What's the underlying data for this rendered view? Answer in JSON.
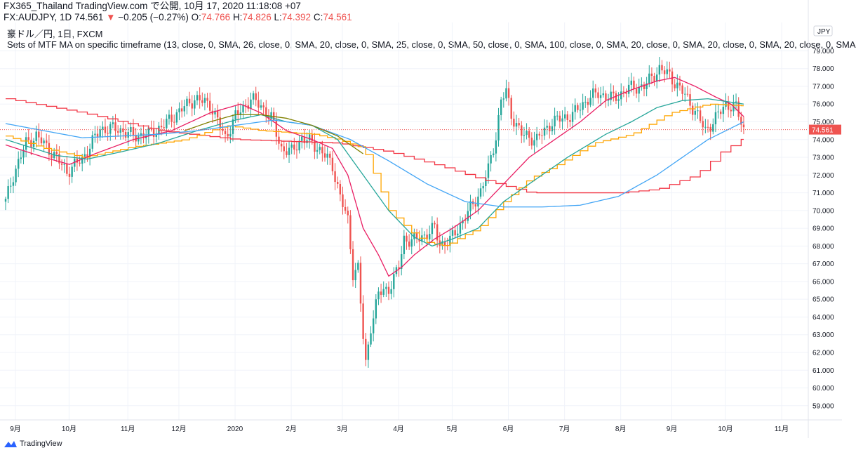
{
  "header": {
    "publish_line": "FX365_Thailand TradingView.com で公開, 10月 17, 2020 11:18:08 +07",
    "symbol": "FX:AUDJPY, 1D",
    "last": "74.561",
    "change": "−0.205 (−0.27%)",
    "o_label": "O:",
    "o": "74.766",
    "h_label": "H:",
    "h": "74.826",
    "l_label": "L:",
    "l": "74.392",
    "c_label": "C:",
    "c": "74.561"
  },
  "legend": {
    "title": "豪ドル／円, 1日, FXCM",
    "indicator": "Sets of MTF MA on specific timeframe (13, close, 0, SMA, 26, close, 0, SMA, 20, close, 0, SMA, 25, close, 0, SMA, 50, close, 0, SMA, 100, close, 0, SMA, 20, close, 0, SMA, 20, close, 0, SMA, 20, close, 0, SMA"
  },
  "footer": {
    "brand": "TradingView"
  },
  "colors": {
    "up": "#26a69a",
    "down": "#ef5350",
    "ma_red": "#f23645",
    "ma_orange": "#ffa500",
    "ma_pink": "#e91e63",
    "ma_teal": "#26a69a",
    "ma_blue": "#42a5f5",
    "ma_olive": "#808000",
    "price_tag": "#ef5350",
    "grid": "#f0f3fa"
  },
  "chart_data": {
    "type": "candlestick",
    "currency": "JPY",
    "last_price_label": "74.561",
    "ylim": [
      58.2,
      80.6
    ],
    "y_ticks": [
      59,
      60,
      61,
      62,
      63,
      64,
      65,
      66,
      67,
      68,
      69,
      70,
      71,
      72,
      73,
      74,
      75,
      76,
      77,
      78,
      79
    ],
    "x_labels": [
      "9月",
      "10月",
      "11月",
      "12月",
      "2020",
      "2月",
      "3月",
      "4月",
      "5月",
      "6月",
      "7月",
      "8月",
      "9月",
      "10月",
      "11月"
    ],
    "x_tick_idx": [
      0,
      21,
      44,
      64,
      86,
      108,
      128,
      150,
      171,
      193,
      215,
      237,
      257,
      278,
      300
    ],
    "price_anchors": [
      [
        0,
        70.5
      ],
      [
        3,
        72.0
      ],
      [
        8,
        73.8
      ],
      [
        12,
        74.2
      ],
      [
        18,
        73.3
      ],
      [
        24,
        72.2
      ],
      [
        30,
        72.9
      ],
      [
        37,
        74.6
      ],
      [
        44,
        74.6
      ],
      [
        50,
        74.2
      ],
      [
        56,
        74.3
      ],
      [
        62,
        74.8
      ],
      [
        68,
        75.6
      ],
      [
        74,
        76.3
      ],
      [
        80,
        76.0
      ],
      [
        86,
        74.1
      ],
      [
        90,
        75.3
      ],
      [
        96,
        76.3
      ],
      [
        100,
        75.9
      ],
      [
        104,
        75.2
      ],
      [
        108,
        73.5
      ],
      [
        112,
        73.3
      ],
      [
        116,
        74.1
      ],
      [
        120,
        73.8
      ],
      [
        124,
        73.3
      ],
      [
        128,
        72.5
      ],
      [
        131,
        70.8
      ],
      [
        134,
        69.4
      ],
      [
        136,
        66.5
      ],
      [
        138,
        66.8
      ],
      [
        140,
        62.8
      ],
      [
        141,
        61.3
      ],
      [
        143,
        63.5
      ],
      [
        146,
        65.3
      ],
      [
        150,
        65.6
      ],
      [
        154,
        66.8
      ],
      [
        156,
        68.4
      ],
      [
        160,
        68.3
      ],
      [
        164,
        68.6
      ],
      [
        168,
        69.0
      ],
      [
        170,
        68.1
      ],
      [
        174,
        68.3
      ],
      [
        178,
        69.2
      ],
      [
        182,
        70.1
      ],
      [
        186,
        71.1
      ],
      [
        189,
        72.3
      ],
      [
        192,
        74.2
      ],
      [
        194,
        76.2
      ],
      [
        196,
        76.7
      ],
      [
        198,
        75.4
      ],
      [
        202,
        74.3
      ],
      [
        208,
        74.0
      ],
      [
        214,
        75.0
      ],
      [
        222,
        75.4
      ],
      [
        228,
        76.3
      ],
      [
        232,
        76.6
      ],
      [
        238,
        76.3
      ],
      [
        244,
        76.9
      ],
      [
        250,
        77.0
      ],
      [
        256,
        78.0
      ],
      [
        260,
        77.6
      ],
      [
        266,
        76.5
      ],
      [
        270,
        75.6
      ],
      [
        274,
        74.5
      ],
      [
        278,
        75.2
      ],
      [
        282,
        76.0
      ],
      [
        286,
        75.8
      ],
      [
        289,
        74.56
      ]
    ],
    "series": [
      {
        "color_key": "ma_red",
        "step": 4,
        "values": [
          [
            0,
            76.3
          ],
          [
            30,
            75.5
          ],
          [
            60,
            74.5
          ],
          [
            90,
            74.0
          ],
          [
            130,
            73.8
          ],
          [
            150,
            73.3
          ],
          [
            170,
            72.5
          ],
          [
            185,
            71.8
          ],
          [
            205,
            71.0
          ],
          [
            240,
            71.0
          ],
          [
            255,
            71.2
          ],
          [
            270,
            72.0
          ],
          [
            280,
            73.3
          ],
          [
            289,
            74.1
          ]
        ]
      },
      {
        "color_key": "ma_orange",
        "step": 3,
        "values": [
          [
            0,
            74.2
          ],
          [
            15,
            73.5
          ],
          [
            30,
            73.0
          ],
          [
            50,
            73.6
          ],
          [
            70,
            74.0
          ],
          [
            86,
            74.8
          ],
          [
            100,
            74.5
          ],
          [
            120,
            74.3
          ],
          [
            130,
            74.0
          ],
          [
            140,
            73.5
          ],
          [
            150,
            70.0
          ],
          [
            160,
            68.6
          ],
          [
            165,
            68.2
          ],
          [
            172,
            68.0
          ],
          [
            178,
            68.5
          ],
          [
            185,
            69.0
          ],
          [
            195,
            70.5
          ],
          [
            205,
            71.8
          ],
          [
            215,
            72.5
          ],
          [
            230,
            73.8
          ],
          [
            245,
            74.3
          ],
          [
            260,
            75.5
          ],
          [
            275,
            76.0
          ],
          [
            289,
            75.9
          ]
        ]
      },
      {
        "color_key": "ma_pink",
        "step": 1,
        "values": [
          [
            0,
            73.7
          ],
          [
            15,
            73.0
          ],
          [
            25,
            72.6
          ],
          [
            35,
            73.2
          ],
          [
            50,
            74.0
          ],
          [
            65,
            74.5
          ],
          [
            80,
            75.5
          ],
          [
            92,
            76.0
          ],
          [
            100,
            75.5
          ],
          [
            110,
            74.5
          ],
          [
            120,
            74.0
          ],
          [
            128,
            73.5
          ],
          [
            134,
            72.0
          ],
          [
            140,
            69.0
          ],
          [
            146,
            67.5
          ],
          [
            150,
            66.3
          ],
          [
            155,
            66.8
          ],
          [
            160,
            67.5
          ],
          [
            168,
            68.4
          ],
          [
            175,
            69.0
          ],
          [
            185,
            70.0
          ],
          [
            195,
            71.5
          ],
          [
            205,
            73.0
          ],
          [
            215,
            74.0
          ],
          [
            225,
            75.0
          ],
          [
            235,
            76.2
          ],
          [
            245,
            76.8
          ],
          [
            255,
            77.3
          ],
          [
            262,
            77.5
          ],
          [
            270,
            77.0
          ],
          [
            278,
            76.4
          ],
          [
            284,
            76.0
          ],
          [
            289,
            75.3
          ]
        ]
      },
      {
        "color_key": "ma_teal",
        "step": 1,
        "values": [
          [
            0,
            74.0
          ],
          [
            20,
            73.1
          ],
          [
            32,
            72.9
          ],
          [
            45,
            73.3
          ],
          [
            60,
            73.8
          ],
          [
            75,
            74.5
          ],
          [
            90,
            75.1
          ],
          [
            100,
            75.4
          ],
          [
            110,
            75.0
          ],
          [
            120,
            74.8
          ],
          [
            130,
            74.0
          ],
          [
            140,
            72.0
          ],
          [
            150,
            70.0
          ],
          [
            160,
            68.5
          ],
          [
            167,
            68.0
          ],
          [
            175,
            68.4
          ],
          [
            185,
            69.0
          ],
          [
            195,
            70.5
          ],
          [
            210,
            72.0
          ],
          [
            220,
            73.0
          ],
          [
            235,
            74.3
          ],
          [
            245,
            75.0
          ],
          [
            255,
            75.8
          ],
          [
            265,
            76.2
          ],
          [
            275,
            76.3
          ],
          [
            289,
            76.0
          ]
        ]
      },
      {
        "color_key": "ma_blue",
        "step": 1,
        "values": [
          [
            0,
            74.9
          ],
          [
            15,
            74.5
          ],
          [
            30,
            74.1
          ],
          [
            45,
            74.2
          ],
          [
            60,
            74.3
          ],
          [
            75,
            74.5
          ],
          [
            90,
            74.8
          ],
          [
            105,
            75.1
          ],
          [
            120,
            74.8
          ],
          [
            135,
            74.0
          ],
          [
            150,
            72.8
          ],
          [
            165,
            71.5
          ],
          [
            180,
            70.5
          ],
          [
            195,
            70.2
          ],
          [
            210,
            70.2
          ],
          [
            225,
            70.3
          ],
          [
            240,
            70.8
          ],
          [
            255,
            72.0
          ],
          [
            265,
            73.0
          ],
          [
            275,
            74.0
          ],
          [
            289,
            75.0
          ]
        ]
      },
      {
        "color_key": "ma_olive",
        "step": 1,
        "values": [
          [
            70,
            74.5
          ],
          [
            80,
            75.0
          ],
          [
            90,
            75.4
          ],
          [
            100,
            75.4
          ],
          [
            110,
            75.2
          ],
          [
            120,
            74.8
          ],
          [
            130,
            74.2
          ],
          [
            140,
            73.2
          ]
        ]
      }
    ]
  }
}
